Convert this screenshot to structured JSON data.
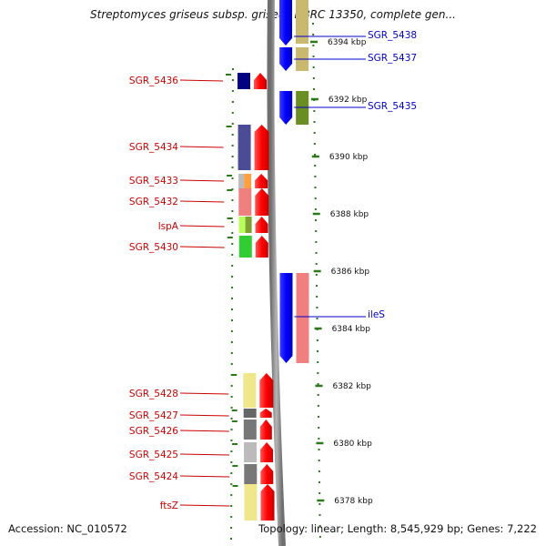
{
  "title": "Streptomyces griseus subsp. griseus NBRC 13350, complete gen...",
  "footer": {
    "accession": "Accession: NC_010572",
    "topology": "Topology: linear; Length: 8,545,929 bp; Genes: 7,222"
  },
  "colors": {
    "left_label": "#cc0000",
    "right_label": "#0000cc",
    "ruler_dash": "#2a7a1a",
    "backbone": "#888888"
  },
  "ruler": {
    "unit": "kbp",
    "ticks": [
      {
        "kbp": 6394,
        "label": "6394 kbp"
      },
      {
        "kbp": 6392,
        "label": "6392 kbp"
      },
      {
        "kbp": 6390,
        "label": "6390 kbp"
      },
      {
        "kbp": 6388,
        "label": "6388 kbp"
      },
      {
        "kbp": 6386,
        "label": "6386 kbp"
      },
      {
        "kbp": 6384,
        "label": "6384 kbp"
      },
      {
        "kbp": 6382,
        "label": "6382 kbp"
      },
      {
        "kbp": 6380,
        "label": "6380 kbp"
      },
      {
        "kbp": 6378,
        "label": "6378 kbp"
      }
    ]
  },
  "genes_minus_strand": [
    {
      "label": "SGR_5436",
      "color": "#000080"
    },
    {
      "label": "SGR_5434",
      "color": "#4b4b96"
    },
    {
      "label": "SGR_5433",
      "color": "#ffa040"
    },
    {
      "label": "SGR_5432",
      "color": "#f08080"
    },
    {
      "label": "lspA",
      "color": "#9acd32"
    },
    {
      "label": "SGR_5430",
      "color": "#32cd32"
    },
    {
      "label": "SGR_5428",
      "color": "#f0e68c"
    },
    {
      "label": "SGR_5427",
      "color": "#666666"
    },
    {
      "label": "SGR_5426",
      "color": "#777777"
    },
    {
      "label": "SGR_5425",
      "color": "#bbbbbb"
    },
    {
      "label": "SGR_5424",
      "color": "#777777"
    },
    {
      "label": "ftsZ",
      "color": "#f0e68c"
    }
  ],
  "genes_plus_strand": [
    {
      "label": "SGR_5438",
      "color": "#c8b96e"
    },
    {
      "label": "SGR_5437",
      "color": "#c8b96e"
    },
    {
      "label": "SGR_5435",
      "color": "#6b8e23"
    },
    {
      "label": "ileS",
      "color": "#f08080"
    }
  ]
}
